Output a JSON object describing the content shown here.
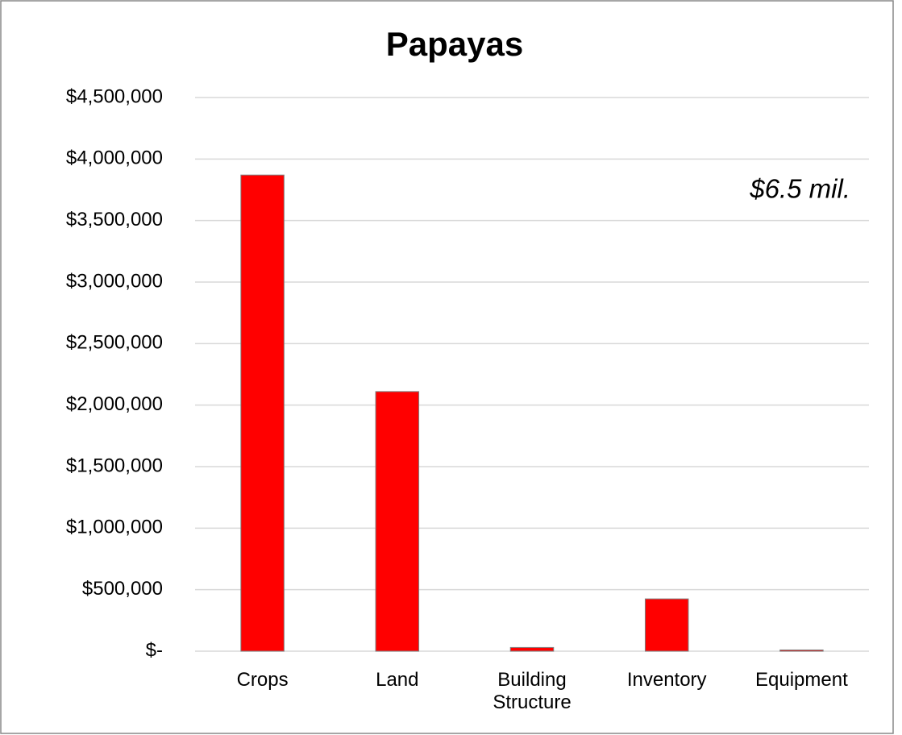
{
  "chart_data": {
    "type": "bar",
    "title": "Papayas",
    "categories": [
      "Crops",
      "Land",
      "Building Structure",
      "Inventory",
      "Equipment"
    ],
    "values": [
      3870000,
      2110000,
      30000,
      425000,
      10000
    ],
    "color": "#ff0000",
    "annotation": "$6.5 mil.",
    "ylim": [
      0,
      4500000
    ],
    "yticks": [
      {
        "value": 0,
        "label": "$-"
      },
      {
        "value": 500000,
        "label": "$500,000"
      },
      {
        "value": 1000000,
        "label": "$1,000,000"
      },
      {
        "value": 1500000,
        "label": "$1,500,000"
      },
      {
        "value": 2000000,
        "label": "$2,000,000"
      },
      {
        "value": 2500000,
        "label": "$2,500,000"
      },
      {
        "value": 3000000,
        "label": "$3,000,000"
      },
      {
        "value": 3500000,
        "label": "$3,500,000"
      },
      {
        "value": 4000000,
        "label": "$4,000,000"
      },
      {
        "value": 4500000,
        "label": "$4,500,000"
      }
    ],
    "grid": true
  }
}
